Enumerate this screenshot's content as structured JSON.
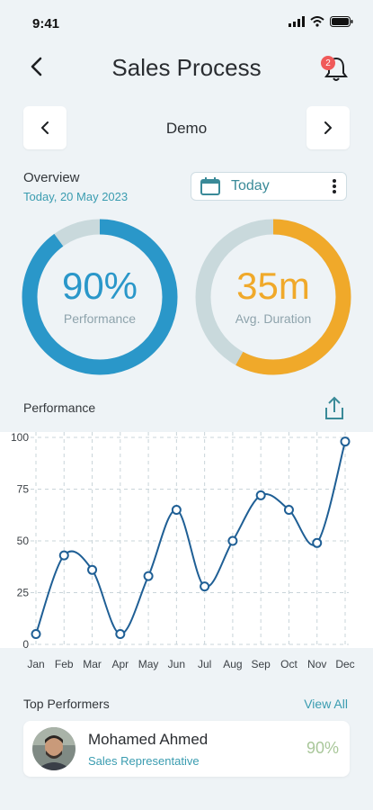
{
  "status_bar": {
    "time": "9:41"
  },
  "header": {
    "title": "Sales Process",
    "notification_count": "2"
  },
  "selector": {
    "label": "Demo"
  },
  "overview": {
    "title": "Overview",
    "date": "Today, 20 May 2023",
    "period": "Today"
  },
  "gauges": {
    "performance": {
      "value": "90%",
      "label": "Performance",
      "fraction": 0.9,
      "color": "#2a97c9",
      "track": "#c9d9dc"
    },
    "duration": {
      "value": "35m",
      "label": "Avg. Duration",
      "fraction": 0.58,
      "color": "#f0a92a",
      "track": "#c9d9dc"
    }
  },
  "chart_data": {
    "type": "line",
    "title": "Performance",
    "categories": [
      "Jan",
      "Feb",
      "Mar",
      "Apr",
      "May",
      "Jun",
      "Jul",
      "Aug",
      "Sep",
      "Oct",
      "Nov",
      "Dec"
    ],
    "series": [
      {
        "values": [
          5,
          43,
          36,
          5,
          33,
          65,
          28,
          50,
          72,
          65,
          49,
          98
        ]
      }
    ],
    "yticks": [
      "0",
      "25",
      "50",
      "75",
      "100"
    ],
    "ylim": [
      0,
      100
    ],
    "grid": true,
    "line_color": "#1f5f95"
  },
  "top_performers": {
    "title": "Top Performers",
    "view_all": "View All",
    "items": [
      {
        "name": "Mohamed Ahmed",
        "role": "Sales Representative",
        "score": "90%"
      }
    ]
  }
}
